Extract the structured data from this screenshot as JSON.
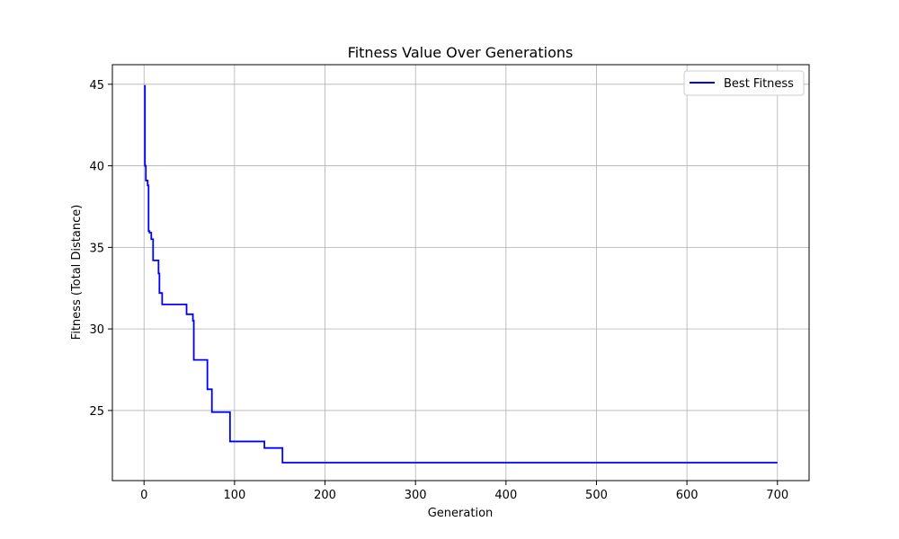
{
  "chart_data": {
    "type": "line",
    "title": "Fitness Value Over Generations",
    "xlabel": "Generation",
    "ylabel": "Fitness (Total Distance)",
    "xlim": [
      -35,
      735
    ],
    "ylim": [
      20.7,
      46.2
    ],
    "xticks": [
      0,
      100,
      200,
      300,
      400,
      500,
      600,
      700
    ],
    "yticks": [
      25,
      30,
      35,
      40,
      45
    ],
    "grid": true,
    "legend_position": "top-right",
    "series": [
      {
        "name": "Best Fitness",
        "color": "#0000ff",
        "x": [
          0,
          1,
          2,
          4,
          5,
          6,
          8,
          10,
          15,
          16,
          17,
          18,
          20,
          46,
          47,
          53,
          54,
          55,
          56,
          69,
          70,
          74,
          75,
          94,
          95,
          132,
          133,
          152,
          153,
          700
        ],
        "y": [
          44.9,
          40.0,
          39.1,
          38.8,
          36.0,
          35.9,
          35.5,
          34.2,
          34.2,
          33.4,
          32.2,
          32.2,
          31.5,
          31.5,
          30.9,
          30.9,
          30.5,
          28.1,
          28.1,
          28.1,
          26.3,
          26.3,
          24.9,
          24.9,
          23.1,
          23.1,
          22.7,
          22.7,
          21.8,
          21.8
        ]
      }
    ]
  }
}
